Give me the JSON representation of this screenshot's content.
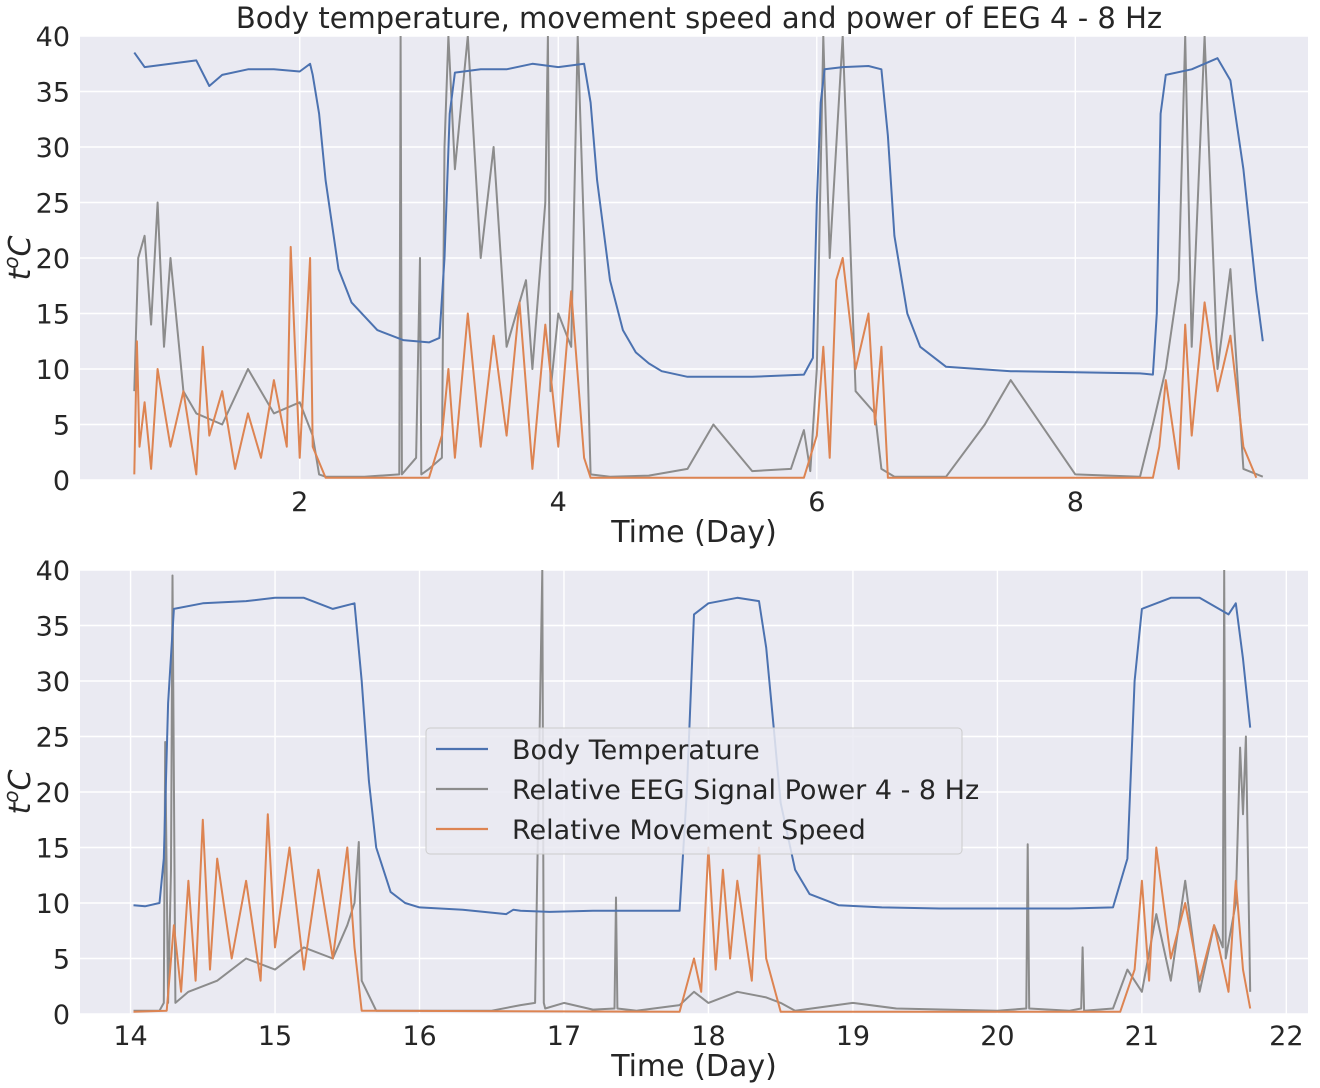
{
  "figure_title": "Body temperature, movement speed and power of EEG 4 - 8 Hz",
  "colors": {
    "background": "#eaeaf2",
    "grid": "#ffffff",
    "temperature": "#4c72b0",
    "eeg": "#8c8c8c",
    "movement": "#dd8452"
  },
  "legend": {
    "placement": "center",
    "items": [
      {
        "label": "Body Temperature",
        "color": "#4c72b0"
      },
      {
        "label": "Relative EEG Signal Power 4 - 8 Hz",
        "color": "#8c8c8c"
      },
      {
        "label": "Relative Movement Speed",
        "color": "#dd8452"
      }
    ]
  },
  "chart_data": [
    {
      "type": "line",
      "title": "Body temperature, movement speed and power of EEG 4 - 8 Hz",
      "xlabel": "Time (Day)",
      "ylabel": "t°C",
      "xlim": [
        0.3,
        9.8
      ],
      "ylim": [
        0,
        40
      ],
      "xticks": [
        2,
        4,
        6,
        8
      ],
      "yticks": [
        0,
        5,
        10,
        15,
        20,
        25,
        30,
        35,
        40
      ],
      "grid": true,
      "series": [
        {
          "name": "Body Temperature",
          "color": "#4c72b0",
          "x": [
            0.72,
            0.8,
            1.0,
            1.2,
            1.3,
            1.4,
            1.6,
            1.8,
            2.0,
            2.08,
            2.1,
            2.15,
            2.2,
            2.3,
            2.4,
            2.6,
            2.8,
            3.0,
            3.08,
            3.12,
            3.16,
            3.2,
            3.4,
            3.6,
            3.8,
            4.0,
            4.2,
            4.25,
            4.3,
            4.4,
            4.5,
            4.6,
            4.7,
            4.8,
            5.0,
            5.5,
            5.9,
            5.97,
            6.0,
            6.03,
            6.06,
            6.2,
            6.4,
            6.5,
            6.55,
            6.6,
            6.7,
            6.8,
            7.0,
            7.5,
            8.0,
            8.5,
            8.6,
            8.63,
            8.66,
            8.7,
            8.9,
            9.1,
            9.2,
            9.3,
            9.4,
            9.45
          ],
          "y": [
            38.5,
            37.2,
            37.5,
            37.8,
            35.5,
            36.5,
            37.0,
            37.0,
            36.8,
            37.5,
            36.5,
            33.0,
            27.0,
            19.0,
            16.0,
            13.5,
            12.6,
            12.4,
            12.8,
            20.0,
            33.0,
            36.7,
            37.0,
            37.0,
            37.5,
            37.2,
            37.5,
            34.0,
            27.0,
            18.0,
            13.5,
            11.5,
            10.5,
            9.8,
            9.3,
            9.3,
            9.5,
            11.0,
            25.0,
            34.0,
            37.0,
            37.2,
            37.3,
            37.0,
            31.0,
            22.0,
            15.0,
            12.0,
            10.2,
            9.8,
            9.7,
            9.6,
            9.5,
            15.0,
            33.0,
            36.5,
            37.0,
            38.0,
            36.0,
            28.0,
            17.0,
            12.5
          ]
        },
        {
          "name": "Relative EEG Signal Power 4 - 8 Hz",
          "color": "#8c8c8c",
          "x": [
            0.72,
            0.75,
            0.8,
            0.85,
            0.9,
            0.95,
            1.0,
            1.1,
            1.2,
            1.4,
            1.6,
            1.8,
            2.0,
            2.1,
            2.15,
            2.2,
            2.5,
            2.77,
            2.78,
            2.79,
            2.9,
            2.93,
            2.94,
            3.0,
            3.1,
            3.12,
            3.15,
            3.2,
            3.3,
            3.4,
            3.5,
            3.6,
            3.75,
            3.8,
            3.9,
            3.92,
            3.94,
            4.0,
            4.1,
            4.15,
            4.2,
            4.25,
            4.4,
            4.7,
            5.0,
            5.2,
            5.5,
            5.8,
            5.9,
            5.95,
            6.0,
            6.05,
            6.1,
            6.2,
            6.3,
            6.45,
            6.5,
            6.6,
            7.0,
            7.3,
            7.5,
            8.0,
            8.5,
            8.6,
            8.7,
            8.8,
            8.85,
            8.9,
            9.0,
            9.1,
            9.2,
            9.3,
            9.45
          ],
          "y": [
            8.0,
            20.0,
            22.0,
            14.0,
            25.0,
            12.0,
            20.0,
            8.0,
            6.0,
            5.0,
            10.0,
            6.0,
            7.0,
            4.0,
            0.5,
            0.3,
            0.3,
            0.5,
            40.0,
            0.5,
            2.0,
            20.0,
            0.5,
            1.0,
            2.0,
            30.0,
            40.0,
            28.0,
            40.0,
            20.0,
            30.0,
            12.0,
            18.0,
            10.0,
            25.0,
            40.0,
            8.0,
            15.0,
            12.0,
            40.0,
            22.0,
            0.5,
            0.3,
            0.4,
            1.0,
            5.0,
            0.8,
            1.0,
            4.5,
            0.8,
            10.0,
            40.0,
            20.0,
            40.0,
            8.0,
            6.0,
            1.0,
            0.3,
            0.3,
            5.0,
            9.0,
            0.5,
            0.3,
            5.0,
            10.0,
            18.0,
            40.0,
            12.0,
            40.0,
            10.0,
            19.0,
            1.0,
            0.3
          ]
        },
        {
          "name": "Relative Movement Speed",
          "color": "#dd8452",
          "x": [
            0.72,
            0.74,
            0.76,
            0.8,
            0.85,
            0.9,
            1.0,
            1.1,
            1.2,
            1.25,
            1.3,
            1.4,
            1.5,
            1.6,
            1.7,
            1.8,
            1.9,
            1.93,
            2.0,
            2.08,
            2.1,
            2.2,
            3.0,
            3.1,
            3.15,
            3.2,
            3.3,
            3.4,
            3.5,
            3.6,
            3.7,
            3.8,
            3.9,
            4.0,
            4.1,
            4.2,
            4.25,
            5.9,
            6.0,
            6.05,
            6.1,
            6.15,
            6.2,
            6.3,
            6.4,
            6.45,
            6.5,
            6.55,
            8.6,
            8.65,
            8.7,
            8.8,
            8.85,
            8.9,
            9.0,
            9.1,
            9.2,
            9.3,
            9.4
          ],
          "y": [
            0.5,
            12.5,
            3.0,
            7.0,
            1.0,
            10.0,
            3.0,
            8.0,
            0.5,
            12.0,
            4.0,
            8.0,
            1.0,
            6.0,
            2.0,
            9.0,
            3.0,
            21.0,
            2.0,
            20.0,
            3.0,
            0.2,
            0.2,
            4.0,
            10.0,
            2.0,
            15.0,
            3.0,
            13.0,
            4.0,
            16.0,
            1.0,
            14.0,
            3.0,
            17.0,
            2.0,
            0.2,
            0.2,
            4.0,
            12.0,
            2.0,
            18.0,
            20.0,
            10.0,
            15.0,
            5.0,
            12.0,
            0.2,
            0.2,
            3.0,
            9.0,
            1.0,
            14.0,
            4.0,
            16.0,
            8.0,
            13.0,
            3.0,
            0.2
          ]
        }
      ]
    },
    {
      "type": "line",
      "title": "",
      "xlabel": "Time (Day)",
      "ylabel": "t°C",
      "xlim": [
        13.65,
        22.15
      ],
      "ylim": [
        0,
        40
      ],
      "xticks": [
        14,
        15,
        16,
        17,
        18,
        19,
        20,
        21,
        22
      ],
      "yticks": [
        0,
        5,
        10,
        15,
        20,
        25,
        30,
        35,
        40
      ],
      "grid": true,
      "legend": "center",
      "series": [
        {
          "name": "Body Temperature",
          "color": "#4c72b0",
          "x": [
            14.02,
            14.1,
            14.2,
            14.23,
            14.26,
            14.3,
            14.5,
            14.8,
            15.0,
            15.2,
            15.4,
            15.55,
            15.6,
            15.65,
            15.7,
            15.8,
            15.9,
            16.0,
            16.3,
            16.6,
            16.65,
            16.7,
            16.9,
            17.2,
            17.5,
            17.8,
            17.85,
            17.9,
            18.0,
            18.2,
            18.35,
            18.4,
            18.45,
            18.5,
            18.6,
            18.7,
            18.9,
            19.2,
            19.6,
            20.0,
            20.5,
            20.8,
            20.9,
            20.95,
            21.0,
            21.2,
            21.4,
            21.6,
            21.65,
            21.7,
            21.75
          ],
          "y": [
            9.8,
            9.7,
            10.0,
            14.0,
            28.0,
            36.5,
            37.0,
            37.2,
            37.5,
            37.5,
            36.5,
            37.0,
            30.0,
            21.0,
            15.0,
            11.0,
            10.0,
            9.6,
            9.4,
            9.0,
            9.4,
            9.3,
            9.2,
            9.3,
            9.3,
            9.3,
            20.0,
            36.0,
            37.0,
            37.5,
            37.2,
            33.0,
            26.0,
            19.0,
            13.0,
            10.8,
            9.8,
            9.6,
            9.5,
            9.5,
            9.5,
            9.6,
            14.0,
            30.0,
            36.5,
            37.5,
            37.5,
            36.0,
            37.0,
            32.0,
            25.8
          ]
        },
        {
          "name": "Relative EEG Signal Power 4 - 8 Hz",
          "color": "#8c8c8c",
          "x": [
            14.02,
            14.2,
            14.23,
            14.24,
            14.26,
            14.28,
            14.29,
            14.31,
            14.4,
            14.6,
            14.8,
            15.0,
            15.2,
            15.4,
            15.5,
            15.55,
            15.58,
            15.6,
            15.7,
            16.5,
            16.7,
            16.8,
            16.85,
            16.86,
            16.87,
            17.0,
            17.2,
            17.35,
            17.36,
            17.37,
            17.5,
            17.8,
            17.9,
            18.0,
            18.2,
            18.4,
            18.5,
            18.6,
            19.0,
            19.3,
            20.0,
            20.2,
            20.21,
            20.22,
            20.5,
            20.58,
            20.59,
            20.6,
            20.8,
            20.9,
            21.0,
            21.1,
            21.2,
            21.3,
            21.4,
            21.5,
            21.56,
            21.57,
            21.58,
            21.65,
            21.68,
            21.7,
            21.72,
            21.75
          ],
          "y": [
            0.3,
            0.3,
            1.0,
            24.5,
            1.0,
            13.0,
            39.5,
            1.0,
            2.0,
            3.0,
            5.0,
            4.0,
            6.0,
            5.0,
            8.0,
            10.0,
            15.5,
            3.0,
            0.3,
            0.3,
            0.8,
            1.0,
            40.0,
            1.0,
            0.5,
            1.0,
            0.4,
            0.5,
            10.5,
            0.5,
            0.3,
            0.8,
            2.0,
            1.0,
            2.0,
            1.5,
            1.0,
            0.3,
            1.0,
            0.5,
            0.3,
            0.5,
            15.3,
            0.5,
            0.3,
            0.5,
            6.0,
            0.3,
            0.5,
            4.0,
            2.0,
            9.0,
            3.0,
            12.0,
            2.0,
            8.0,
            6.0,
            40.0,
            5.0,
            10.0,
            24.0,
            18.0,
            25.0,
            2.0
          ]
        },
        {
          "name": "Relative Movement Speed",
          "color": "#dd8452",
          "x": [
            14.02,
            14.25,
            14.3,
            14.35,
            14.4,
            14.45,
            14.5,
            14.55,
            14.6,
            14.7,
            14.8,
            14.9,
            14.95,
            15.0,
            15.1,
            15.2,
            15.3,
            15.4,
            15.5,
            15.55,
            15.6,
            17.8,
            17.9,
            17.95,
            18.0,
            18.05,
            18.1,
            18.15,
            18.2,
            18.3,
            18.35,
            18.4,
            18.5,
            20.85,
            20.95,
            21.0,
            21.05,
            21.1,
            21.2,
            21.3,
            21.4,
            21.5,
            21.6,
            21.65,
            21.7,
            21.75
          ],
          "y": [
            0.2,
            0.3,
            8.0,
            2.0,
            12.0,
            3.0,
            17.5,
            4.0,
            14.0,
            5.0,
            12.0,
            3.0,
            18.0,
            6.0,
            15.0,
            4.0,
            13.0,
            5.0,
            15.0,
            6.0,
            0.3,
            0.2,
            5.0,
            2.0,
            15.0,
            4.0,
            13.0,
            5.0,
            12.0,
            3.0,
            15.0,
            5.0,
            0.2,
            0.2,
            4.0,
            12.0,
            3.0,
            15.0,
            5.0,
            10.0,
            3.0,
            8.0,
            2.0,
            12.0,
            4.0,
            0.5
          ]
        }
      ]
    }
  ]
}
